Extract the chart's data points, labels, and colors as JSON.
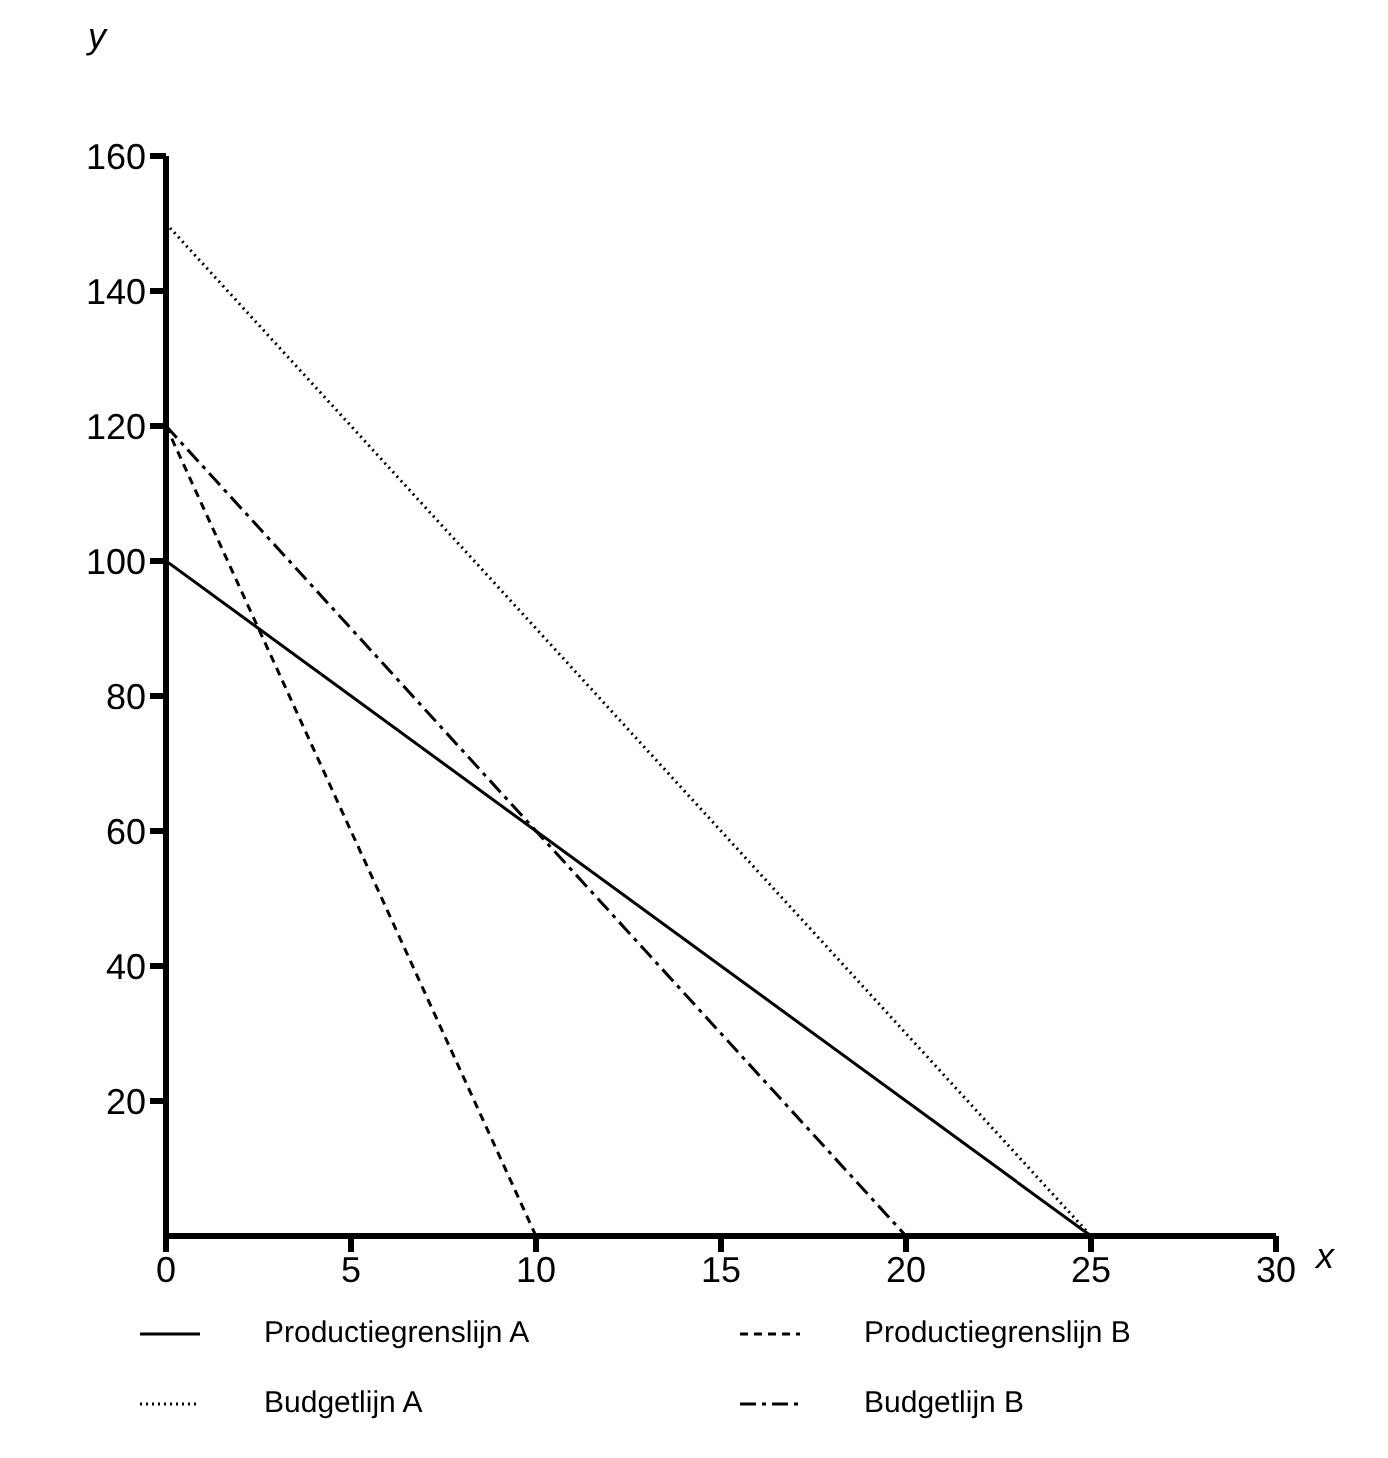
{
  "chart_data": {
    "type": "line",
    "xlabel": "x",
    "ylabel": "y",
    "xlim": [
      0,
      30
    ],
    "xticks": [
      0,
      5,
      10,
      15,
      20,
      25,
      30
    ],
    "ylim": [
      0,
      160
    ],
    "yticks": [
      20,
      40,
      60,
      80,
      100,
      120,
      140,
      160
    ],
    "grid": false,
    "legend": "bottom",
    "marker": "none",
    "series": [
      {
        "name": "Productiegrenslijn A",
        "color": "#000000",
        "line_style": "solid",
        "x": [
          0,
          25
        ],
        "values": [
          100,
          0
        ]
      },
      {
        "name": "Productiegrenslijn B",
        "color": "#000000",
        "line_style": "dashed",
        "x": [
          0,
          10
        ],
        "values": [
          120,
          0
        ]
      },
      {
        "name": "Budgetlijn A",
        "color": "#000000",
        "line_style": "dotted",
        "x": [
          0,
          25
        ],
        "values": [
          150,
          0
        ]
      },
      {
        "name": "Budgetlijn B",
        "color": "#000000",
        "line_style": "dashdot",
        "x": [
          0,
          20
        ],
        "values": [
          120,
          0
        ]
      }
    ]
  }
}
